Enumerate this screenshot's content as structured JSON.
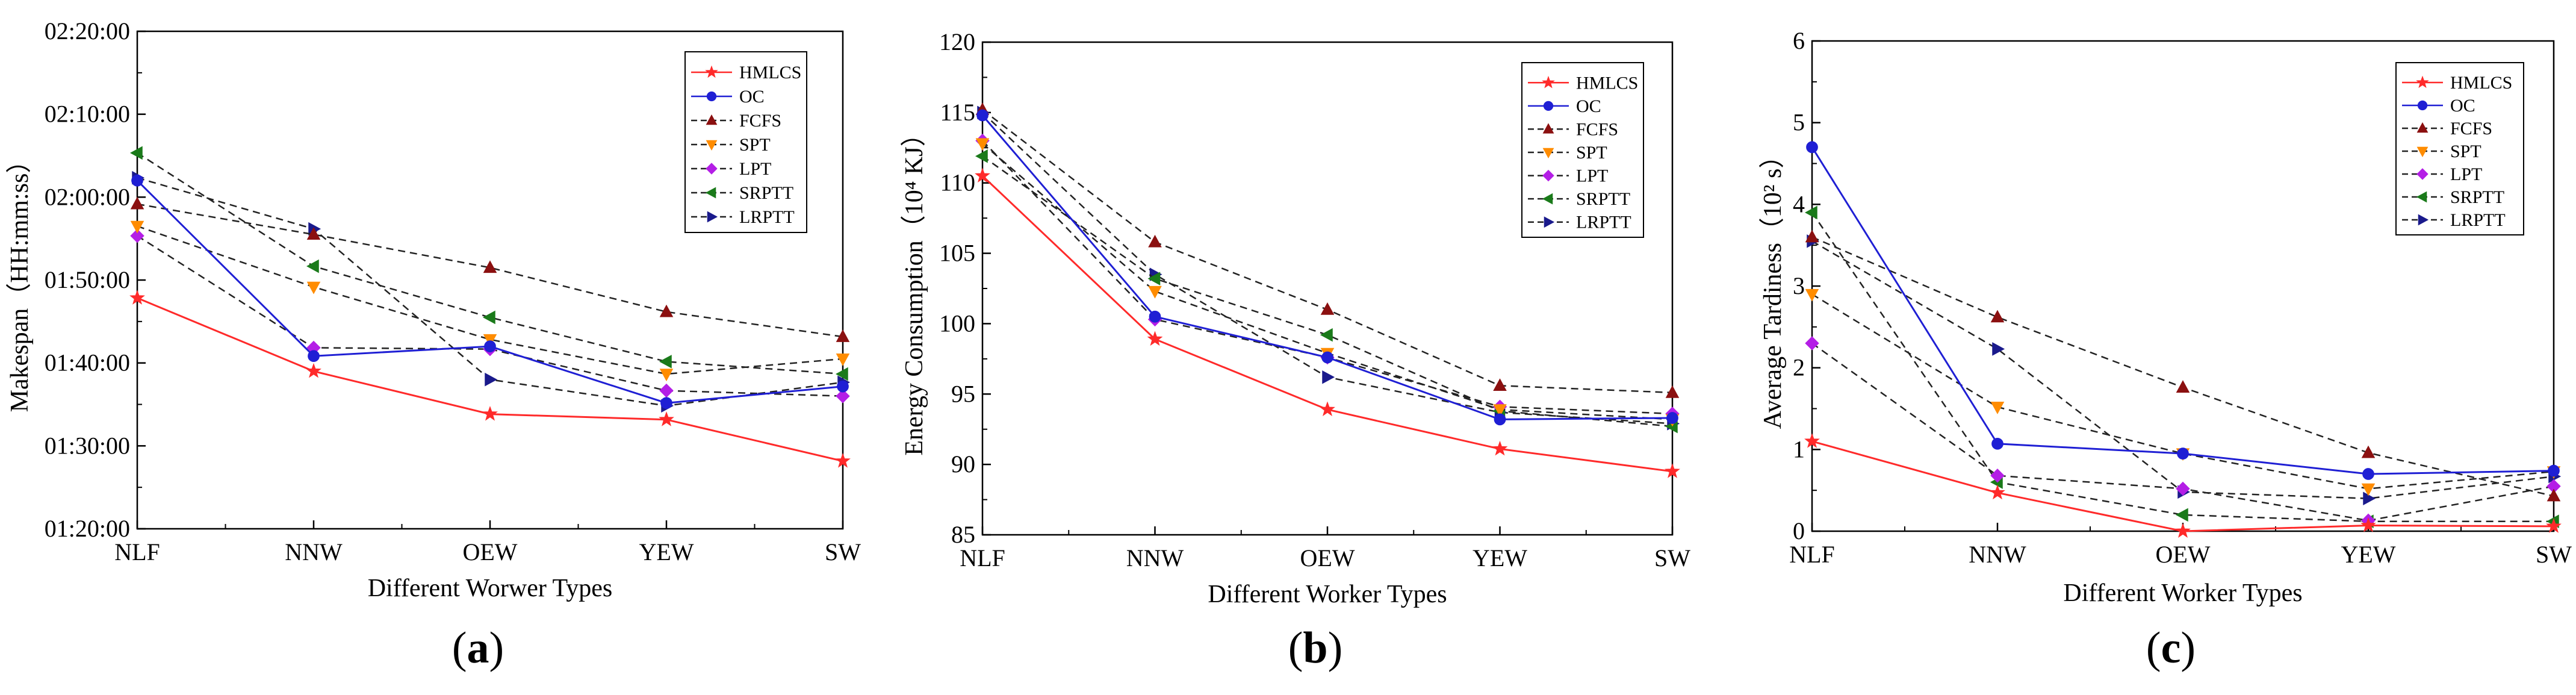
{
  "chart_data": [
    {
      "type": "line",
      "panel_label": "a",
      "xlabel": "Different Worwer Types",
      "ylabel": "Makespan（HH:mm:ss）",
      "categories": [
        "NLF",
        "NNW",
        "OEW",
        "YEW",
        "SW"
      ],
      "yticks": [
        {
          "value": 4800,
          "label": "01:20:00"
        },
        {
          "value": 5400,
          "label": "01:30:00"
        },
        {
          "value": 6000,
          "label": "01:40:00"
        },
        {
          "value": 6600,
          "label": "01:50:00"
        },
        {
          "value": 7200,
          "label": "02:00:00"
        },
        {
          "value": 7800,
          "label": "02:10:00"
        },
        {
          "value": 8400,
          "label": "02:20:00"
        }
      ],
      "ylim": [
        4800,
        8400
      ],
      "legend_position": "top-right",
      "series": [
        {
          "name": "HMLCS",
          "values": [
            6470,
            5940,
            5630,
            5590,
            5290
          ]
        },
        {
          "name": "OC",
          "values": [
            7320,
            6050,
            6120,
            5710,
            5830
          ]
        },
        {
          "name": "FCFS",
          "values": [
            7150,
            6930,
            6690,
            6370,
            6190
          ]
        },
        {
          "name": "SPT",
          "values": [
            6990,
            6550,
            6170,
            5920,
            6030
          ]
        },
        {
          "name": "LPT",
          "values": [
            6920,
            6110,
            6100,
            5800,
            5760
          ]
        },
        {
          "name": "SRPTT",
          "values": [
            7520,
            6700,
            6330,
            6010,
            5920
          ]
        },
        {
          "name": "LRPTT",
          "values": [
            7340,
            6970,
            5880,
            5690,
            5860
          ]
        }
      ]
    },
    {
      "type": "line",
      "panel_label": "b",
      "xlabel": "Different Worker Types",
      "ylabel": "Energy Consumption（10⁴ KJ）",
      "categories": [
        "NLF",
        "NNW",
        "OEW",
        "YEW",
        "SW"
      ],
      "yticks": [
        {
          "value": 85,
          "label": "85"
        },
        {
          "value": 90,
          "label": "90"
        },
        {
          "value": 95,
          "label": "95"
        },
        {
          "value": 100,
          "label": "100"
        },
        {
          "value": 105,
          "label": "105"
        },
        {
          "value": 110,
          "label": "110"
        },
        {
          "value": 115,
          "label": "115"
        },
        {
          "value": 120,
          "label": "120"
        }
      ],
      "ylim": [
        85,
        120
      ],
      "legend_position": "top-right",
      "series": [
        {
          "name": "HMLCS",
          "values": [
            110.5,
            98.9,
            93.9,
            91.1,
            89.5
          ]
        },
        {
          "name": "OC",
          "values": [
            114.8,
            100.5,
            97.6,
            93.2,
            93.3
          ]
        },
        {
          "name": "FCFS",
          "values": [
            115.2,
            105.8,
            101.0,
            95.6,
            95.1
          ]
        },
        {
          "name": "SPT",
          "values": [
            112.8,
            102.3,
            97.9,
            93.9,
            93.2
          ]
        },
        {
          "name": "LPT",
          "values": [
            113.0,
            100.3,
            97.6,
            94.1,
            93.6
          ]
        },
        {
          "name": "SRPTT",
          "values": [
            111.9,
            103.2,
            99.2,
            93.8,
            92.7
          ]
        },
        {
          "name": "LRPTT",
          "values": [
            115.0,
            103.5,
            96.2,
            93.7,
            92.9
          ]
        }
      ]
    },
    {
      "type": "line",
      "panel_label": "c",
      "xlabel": "Different Worker Types",
      "ylabel": "Average Tardiness（10² s）",
      "categories": [
        "NLF",
        "NNW",
        "OEW",
        "YEW",
        "SW"
      ],
      "yticks": [
        {
          "value": 0,
          "label": "0"
        },
        {
          "value": 1,
          "label": "1"
        },
        {
          "value": 2,
          "label": "2"
        },
        {
          "value": 3,
          "label": "3"
        },
        {
          "value": 4,
          "label": "4"
        },
        {
          "value": 5,
          "label": "5"
        },
        {
          "value": 6,
          "label": "6"
        }
      ],
      "ylim": [
        0,
        6
      ],
      "legend_position": "top-right",
      "series": [
        {
          "name": "HMLCS",
          "values": [
            1.1,
            0.47,
            0.0,
            0.07,
            0.06
          ]
        },
        {
          "name": "OC",
          "values": [
            4.7,
            1.07,
            0.95,
            0.7,
            0.74
          ]
        },
        {
          "name": "FCFS",
          "values": [
            3.6,
            2.62,
            1.76,
            0.96,
            0.43
          ]
        },
        {
          "name": "SPT",
          "values": [
            2.9,
            1.52,
            0.95,
            0.52,
            0.73
          ]
        },
        {
          "name": "LPT",
          "values": [
            2.3,
            0.68,
            0.52,
            0.13,
            0.55
          ]
        },
        {
          "name": "SRPTT",
          "values": [
            3.9,
            0.6,
            0.2,
            0.12,
            0.12
          ]
        },
        {
          "name": "LRPTT",
          "values": [
            3.55,
            2.23,
            0.48,
            0.4,
            0.67
          ]
        }
      ]
    }
  ],
  "series_styles": {
    "HMLCS": {
      "color": "#ff2a2a",
      "marker": "star",
      "dashed": false
    },
    "OC": {
      "color": "#1f1fd4",
      "marker": "circle",
      "dashed": false
    },
    "FCFS": {
      "color": "#8b1010",
      "marker": "triangle-up",
      "dashed": true
    },
    "SPT": {
      "color": "#ff8c00",
      "marker": "triangle-down",
      "dashed": true
    },
    "LPT": {
      "color": "#b41ee6",
      "marker": "diamond",
      "dashed": true
    },
    "SRPTT": {
      "color": "#1a7a1a",
      "marker": "triangle-left",
      "dashed": true
    },
    "LRPTT": {
      "color": "#1a1a8c",
      "marker": "triangle-right",
      "dashed": true
    }
  }
}
